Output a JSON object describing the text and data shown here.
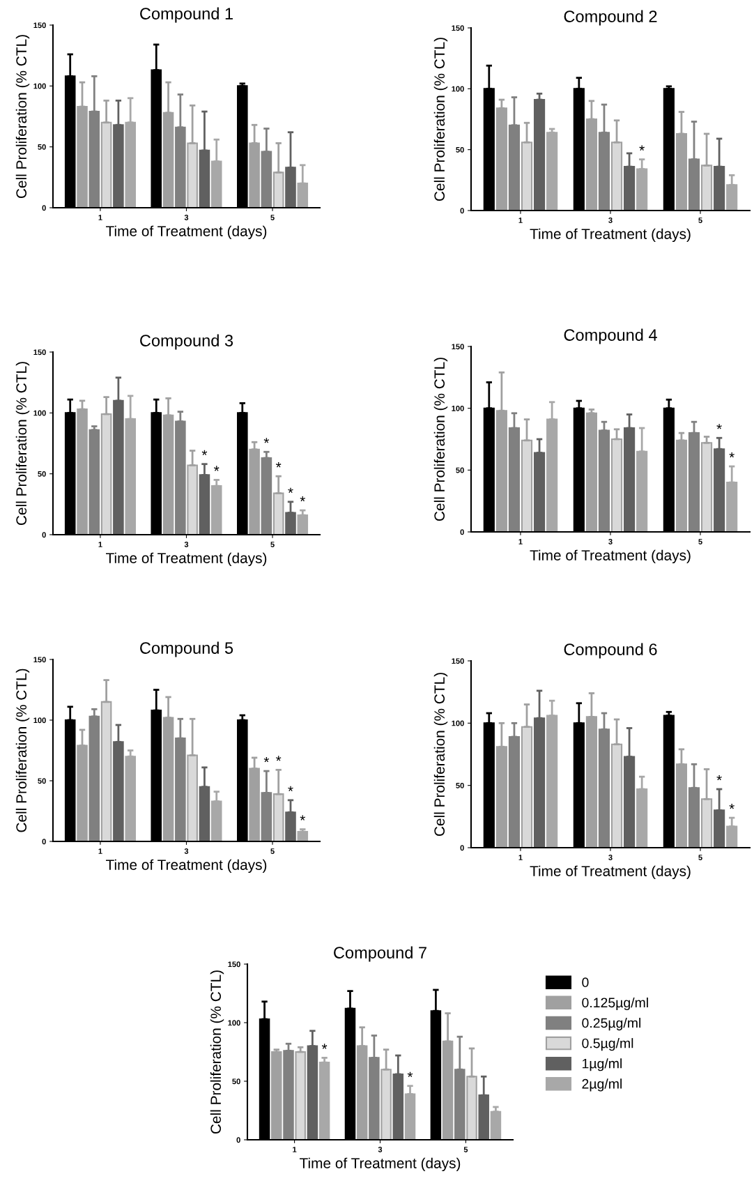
{
  "chart_data": [
    {
      "type": "bar",
      "title": "Compound 1",
      "xlabel": "Time of Treatment (days)",
      "ylabel": "Cell Proliferation (% CTL)",
      "categories": [
        "1",
        "3",
        "5"
      ],
      "ylim": [
        0,
        150
      ],
      "yticks": [
        0,
        50,
        100,
        150
      ],
      "grid": false,
      "legend": false,
      "series": [
        {
          "color": "#000000",
          "values": [
            108,
            113,
            100
          ],
          "errors": [
            [
              108,
              126
            ],
            [
              113,
              134
            ],
            [
              100,
              102
            ]
          ]
        },
        {
          "color": "#a0a0a0",
          "values": [
            83,
            78,
            53
          ],
          "errors": [
            [
              83,
              103
            ],
            [
              78,
              103
            ],
            [
              53,
              68
            ]
          ]
        },
        {
          "color": "#808080",
          "values": [
            79,
            66,
            46
          ],
          "errors": [
            [
              79,
              108
            ],
            [
              66,
              93
            ],
            [
              46,
              65
            ]
          ]
        },
        {
          "color": "#d9d9d9",
          "values": [
            70,
            53,
            29
          ],
          "errors": [
            [
              70,
              88
            ],
            [
              53,
              84
            ],
            [
              29,
              53
            ]
          ]
        },
        {
          "color": "#606060",
          "values": [
            68,
            47,
            33
          ],
          "errors": [
            [
              68,
              88
            ],
            [
              47,
              79
            ],
            [
              33,
              62
            ]
          ]
        },
        {
          "color": "#a8a8a8",
          "values": [
            70,
            38,
            20
          ],
          "errors": [
            [
              70,
              90
            ],
            [
              38,
              56
            ],
            [
              20,
              35
            ]
          ]
        }
      ]
    },
    {
      "type": "bar",
      "title": "Compound 2",
      "xlabel": "Time of Treatment (days)",
      "ylabel": "Cell Proliferation (% CTL)",
      "categories": [
        "1",
        "3",
        "5"
      ],
      "ylim": [
        0,
        150
      ],
      "yticks": [
        0,
        50,
        100,
        150
      ],
      "grid": false,
      "legend": false,
      "annotations": [
        {
          "text": "*",
          "x": "3",
          "y": 42
        }
      ],
      "series": [
        {
          "color": "#000000",
          "values": [
            100,
            100,
            100
          ],
          "errors": [
            [
              100,
              119
            ],
            [
              100,
              109
            ],
            [
              100,
              102
            ]
          ]
        },
        {
          "color": "#a0a0a0",
          "values": [
            84,
            75,
            63
          ],
          "errors": [
            [
              84,
              91
            ],
            [
              75,
              90
            ],
            [
              63,
              81
            ]
          ]
        },
        {
          "color": "#808080",
          "values": [
            70,
            64,
            42
          ],
          "errors": [
            [
              70,
              93
            ],
            [
              64,
              87
            ],
            [
              42,
              73
            ]
          ]
        },
        {
          "color": "#d9d9d9",
          "values": [
            56,
            56,
            37
          ],
          "errors": [
            [
              56,
              72
            ],
            [
              56,
              74
            ],
            [
              37,
              63
            ]
          ]
        },
        {
          "color": "#606060",
          "values": [
            91,
            36,
            36
          ],
          "errors": [
            [
              91,
              96
            ],
            [
              36,
              47
            ],
            [
              36,
              59
            ]
          ]
        },
        {
          "color": "#a8a8a8",
          "values": [
            64,
            34,
            21
          ],
          "errors": [
            [
              64,
              67
            ],
            [
              34,
              42
            ],
            [
              21,
              29
            ]
          ]
        }
      ]
    },
    {
      "type": "bar",
      "title": "Compound 3",
      "xlabel": "Time of Treatment (days)",
      "ylabel": "Cell Proliferation (% CTL)",
      "categories": [
        "1",
        "3",
        "5"
      ],
      "ylim": [
        0,
        150
      ],
      "yticks": [
        0,
        50,
        100,
        150
      ],
      "grid": false,
      "legend": false,
      "annotations": [
        {
          "text": "*",
          "x": "3",
          "y": 58
        },
        {
          "text": "*",
          "x": "3",
          "y": 45
        },
        {
          "text": "*",
          "x": "5",
          "y": 68
        },
        {
          "text": "*",
          "x": "5",
          "y": 48
        },
        {
          "text": "*",
          "x": "5",
          "y": 27
        },
        {
          "text": "*",
          "x": "5",
          "y": 20
        }
      ],
      "series": [
        {
          "color": "#000000",
          "values": [
            100,
            100,
            100
          ],
          "errors": [
            [
              100,
              111
            ],
            [
              100,
              111
            ],
            [
              100,
              108
            ]
          ]
        },
        {
          "color": "#a0a0a0",
          "values": [
            103,
            98,
            70
          ],
          "errors": [
            [
              103,
              110
            ],
            [
              98,
              112
            ],
            [
              70,
              76
            ]
          ]
        },
        {
          "color": "#808080",
          "values": [
            86,
            93,
            63
          ],
          "errors": [
            [
              86,
              89
            ],
            [
              93,
              101
            ],
            [
              63,
              68
            ]
          ]
        },
        {
          "color": "#d9d9d9",
          "values": [
            99,
            57,
            34
          ],
          "errors": [
            [
              99,
              113
            ],
            [
              57,
              69
            ],
            [
              34,
              48
            ]
          ]
        },
        {
          "color": "#606060",
          "values": [
            110,
            49,
            18
          ],
          "errors": [
            [
              110,
              129
            ],
            [
              49,
              58
            ],
            [
              18,
              27
            ]
          ]
        },
        {
          "color": "#a8a8a8",
          "values": [
            95,
            40,
            16
          ],
          "errors": [
            [
              95,
              114
            ],
            [
              40,
              45
            ],
            [
              16,
              20
            ]
          ]
        }
      ]
    },
    {
      "type": "bar",
      "title": "Compound 4",
      "xlabel": "Time of Treatment (days)",
      "ylabel": "Cell Proliferation (% CTL)",
      "categories": [
        "1",
        "3",
        "5"
      ],
      "ylim": [
        0,
        150
      ],
      "yticks": [
        0,
        50,
        100,
        150
      ],
      "grid": false,
      "legend": false,
      "annotations": [
        {
          "text": "*",
          "x": "5",
          "y": 76
        },
        {
          "text": "*",
          "x": "5",
          "y": 53
        }
      ],
      "series": [
        {
          "color": "#000000",
          "values": [
            100,
            100,
            100
          ],
          "errors": [
            [
              100,
              121
            ],
            [
              100,
              106
            ],
            [
              100,
              107
            ]
          ]
        },
        {
          "color": "#a0a0a0",
          "values": [
            98,
            96,
            74
          ],
          "errors": [
            [
              98,
              129
            ],
            [
              96,
              99
            ],
            [
              74,
              80
            ]
          ]
        },
        {
          "color": "#808080",
          "values": [
            84,
            82,
            80
          ],
          "errors": [
            [
              84,
              96
            ],
            [
              82,
              89
            ],
            [
              80,
              89
            ]
          ]
        },
        {
          "color": "#d9d9d9",
          "values": [
            74,
            75,
            72
          ],
          "errors": [
            [
              74,
              91
            ],
            [
              75,
              83
            ],
            [
              72,
              77
            ]
          ]
        },
        {
          "color": "#606060",
          "values": [
            64,
            84,
            67
          ],
          "errors": [
            [
              64,
              75
            ],
            [
              84,
              95
            ],
            [
              67,
              76
            ]
          ]
        },
        {
          "color": "#a8a8a8",
          "values": [
            91,
            65,
            40
          ],
          "errors": [
            [
              91,
              105
            ],
            [
              65,
              84
            ],
            [
              40,
              53
            ]
          ]
        }
      ]
    },
    {
      "type": "bar",
      "title": "Compound 5",
      "xlabel": "Time of Treatment (days)",
      "ylabel": "Cell Proliferation (% CTL)",
      "categories": [
        "1",
        "3",
        "5"
      ],
      "ylim": [
        0,
        150
      ],
      "yticks": [
        0,
        50,
        100,
        150
      ],
      "grid": false,
      "legend": false,
      "annotations": [
        {
          "text": "*",
          "x": "5",
          "y": 58
        },
        {
          "text": "*",
          "x": "5",
          "y": 59
        },
        {
          "text": "*",
          "x": "5",
          "y": 34
        },
        {
          "text": "*",
          "x": "5",
          "y": 10
        }
      ],
      "series": [
        {
          "color": "#000000",
          "values": [
            100,
            108,
            100
          ],
          "errors": [
            [
              100,
              111
            ],
            [
              108,
              125
            ],
            [
              100,
              104
            ]
          ]
        },
        {
          "color": "#a0a0a0",
          "values": [
            79,
            102,
            60
          ],
          "errors": [
            [
              79,
              92
            ],
            [
              102,
              119
            ],
            [
              60,
              69
            ]
          ]
        },
        {
          "color": "#808080",
          "values": [
            103,
            85,
            40
          ],
          "errors": [
            [
              103,
              109
            ],
            [
              85,
              101
            ],
            [
              40,
              58
            ]
          ]
        },
        {
          "color": "#d9d9d9",
          "values": [
            115,
            71,
            39
          ],
          "errors": [
            [
              115,
              133
            ],
            [
              71,
              101
            ],
            [
              39,
              59
            ]
          ]
        },
        {
          "color": "#606060",
          "values": [
            82,
            45,
            24
          ],
          "errors": [
            [
              82,
              96
            ],
            [
              45,
              61
            ],
            [
              24,
              34
            ]
          ]
        },
        {
          "color": "#a8a8a8",
          "values": [
            70,
            33,
            8
          ],
          "errors": [
            [
              70,
              75
            ],
            [
              33,
              41
            ],
            [
              8,
              10
            ]
          ]
        }
      ]
    },
    {
      "type": "bar",
      "title": "Compound 6",
      "xlabel": "Time of Treatment (days)",
      "ylabel": "Cell Proliferation (% CTL)",
      "categories": [
        "1",
        "3",
        "5"
      ],
      "ylim": [
        0,
        150
      ],
      "yticks": [
        0,
        50,
        100,
        150
      ],
      "grid": false,
      "legend": false,
      "annotations": [
        {
          "text": "*",
          "x": "5",
          "y": 47
        },
        {
          "text": "*",
          "x": "5",
          "y": 24
        }
      ],
      "series": [
        {
          "color": "#000000",
          "values": [
            100,
            100,
            106
          ],
          "errors": [
            [
              100,
              108
            ],
            [
              100,
              116
            ],
            [
              106,
              109
            ]
          ]
        },
        {
          "color": "#a0a0a0",
          "values": [
            81,
            105,
            67
          ],
          "errors": [
            [
              81,
              100
            ],
            [
              105,
              124
            ],
            [
              67,
              79
            ]
          ]
        },
        {
          "color": "#808080",
          "values": [
            89,
            95,
            48
          ],
          "errors": [
            [
              89,
              100
            ],
            [
              95,
              108
            ],
            [
              48,
              67
            ]
          ]
        },
        {
          "color": "#d9d9d9",
          "values": [
            97,
            83,
            39
          ],
          "errors": [
            [
              97,
              115
            ],
            [
              83,
              103
            ],
            [
              39,
              63
            ]
          ]
        },
        {
          "color": "#606060",
          "values": [
            104,
            73,
            30
          ],
          "errors": [
            [
              104,
              126
            ],
            [
              73,
              96
            ],
            [
              30,
              47
            ]
          ]
        },
        {
          "color": "#a8a8a8",
          "values": [
            106,
            47,
            17
          ],
          "errors": [
            [
              106,
              118
            ],
            [
              47,
              57
            ],
            [
              17,
              24
            ]
          ]
        }
      ]
    },
    {
      "type": "bar",
      "title": "Compound 7",
      "xlabel": "Time of Treatment (days)",
      "ylabel": "Cell Proliferation (% CTL)",
      "categories": [
        "1",
        "3",
        "5"
      ],
      "ylim": [
        0,
        150
      ],
      "yticks": [
        0,
        50,
        100,
        150
      ],
      "grid": false,
      "legend": "right",
      "annotations": [
        {
          "text": "*",
          "x": "1",
          "y": 70
        },
        {
          "text": "*",
          "x": "3",
          "y": 46
        }
      ],
      "series": [
        {
          "name": "0",
          "color": "#000000",
          "values": [
            103,
            112,
            110
          ],
          "errors": [
            [
              103,
              118
            ],
            [
              112,
              127
            ],
            [
              110,
              128
            ]
          ]
        },
        {
          "name": "0.125µg/ml",
          "color": "#a0a0a0",
          "values": [
            75,
            80,
            84
          ],
          "errors": [
            [
              75,
              77
            ],
            [
              80,
              96
            ],
            [
              84,
              108
            ]
          ]
        },
        {
          "name": "0.25µg/ml",
          "color": "#808080",
          "values": [
            76,
            70,
            60
          ],
          "errors": [
            [
              76,
              82
            ],
            [
              70,
              89
            ],
            [
              60,
              88
            ]
          ]
        },
        {
          "name": "0.5µg/ml",
          "color": "#d9d9d9",
          "values": [
            75,
            60,
            54
          ],
          "errors": [
            [
              75,
              79
            ],
            [
              60,
              77
            ],
            [
              54,
              78
            ]
          ]
        },
        {
          "name": "1µg/ml",
          "color": "#606060",
          "values": [
            80,
            56,
            38
          ],
          "errors": [
            [
              80,
              93
            ],
            [
              56,
              72
            ],
            [
              38,
              54
            ]
          ]
        },
        {
          "name": "2µg/ml",
          "color": "#a8a8a8",
          "values": [
            66,
            39,
            24
          ],
          "errors": [
            [
              66,
              70
            ],
            [
              39,
              46
            ],
            [
              24,
              28
            ]
          ]
        }
      ]
    }
  ]
}
